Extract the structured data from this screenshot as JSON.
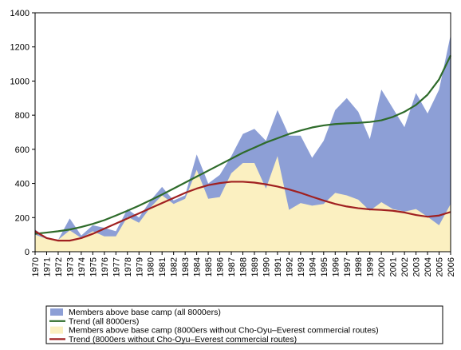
{
  "chart_data": {
    "type": "area",
    "x": [
      1970,
      1971,
      1972,
      1973,
      1974,
      1975,
      1976,
      1977,
      1978,
      1979,
      1980,
      1981,
      1982,
      1983,
      1984,
      1985,
      1986,
      1987,
      1988,
      1989,
      1990,
      1991,
      1992,
      1993,
      1994,
      1995,
      1996,
      1997,
      1998,
      1999,
      2000,
      2001,
      2002,
      2003,
      2004,
      2005,
      2006
    ],
    "x_tick_labels": [
      "1970",
      "1971",
      "1972",
      "1973",
      "1974",
      "1975",
      "1976",
      "1977",
      "1978",
      "1979",
      "1980",
      "1981",
      "1982",
      "1983",
      "1984",
      "1985",
      "1986",
      "1987",
      "1988",
      "1989",
      "1990",
      "1991",
      "1992",
      "1993",
      "1994",
      "1995",
      "1996",
      "1997",
      "1998",
      "1999",
      "2000",
      "2001",
      "2002",
      "2003",
      "2004",
      "2005",
      "2006"
    ],
    "y_ticks": [
      0,
      200,
      400,
      600,
      800,
      1000,
      1200,
      1400
    ],
    "y_tick_labels": [
      "0",
      "200",
      "400",
      "600",
      "800",
      "1000",
      "1200",
      "1400"
    ],
    "ylim": [
      0,
      1400
    ],
    "grid": false,
    "legend_position": "bottom",
    "series": [
      {
        "name": "Members above base camp (all 8000ers)",
        "kind": "area",
        "color": "#8d9fd6",
        "values": [
          130,
          80,
          70,
          195,
          95,
          155,
          140,
          120,
          250,
          200,
          300,
          380,
          300,
          330,
          570,
          400,
          450,
          560,
          690,
          720,
          650,
          830,
          680,
          680,
          550,
          650,
          830,
          900,
          820,
          660,
          950,
          840,
          730,
          930,
          810,
          950,
          1270
        ]
      },
      {
        "name": "Trend (all 8000ers)",
        "kind": "line",
        "color": "#2e6b2a",
        "values": [
          105,
          112,
          120,
          130,
          145,
          163,
          185,
          212,
          240,
          270,
          302,
          335,
          370,
          405,
          440,
          475,
          510,
          545,
          580,
          610,
          640,
          665,
          690,
          710,
          728,
          740,
          748,
          752,
          755,
          760,
          770,
          790,
          820,
          860,
          920,
          1010,
          1150
        ]
      },
      {
        "name": "Members above base camp (8000ers without Cho-Oyu–Everest commercial routes)",
        "kind": "area",
        "color": "#fbf0c1",
        "values": [
          100,
          75,
          70,
          125,
          80,
          120,
          90,
          90,
          205,
          170,
          260,
          330,
          280,
          310,
          480,
          310,
          320,
          460,
          520,
          520,
          370,
          560,
          245,
          285,
          270,
          280,
          345,
          330,
          305,
          240,
          290,
          250,
          235,
          250,
          205,
          155,
          280
        ]
      },
      {
        "name": "Trend (8000ers without Cho-Oyu–Everest commercial routes)",
        "kind": "line",
        "color": "#a02020",
        "values": [
          120,
          80,
          65,
          65,
          80,
          105,
          135,
          165,
          195,
          225,
          255,
          285,
          315,
          345,
          370,
          390,
          402,
          410,
          410,
          405,
          395,
          382,
          365,
          345,
          322,
          300,
          280,
          265,
          255,
          248,
          245,
          240,
          230,
          215,
          205,
          212,
          233
        ]
      }
    ]
  }
}
